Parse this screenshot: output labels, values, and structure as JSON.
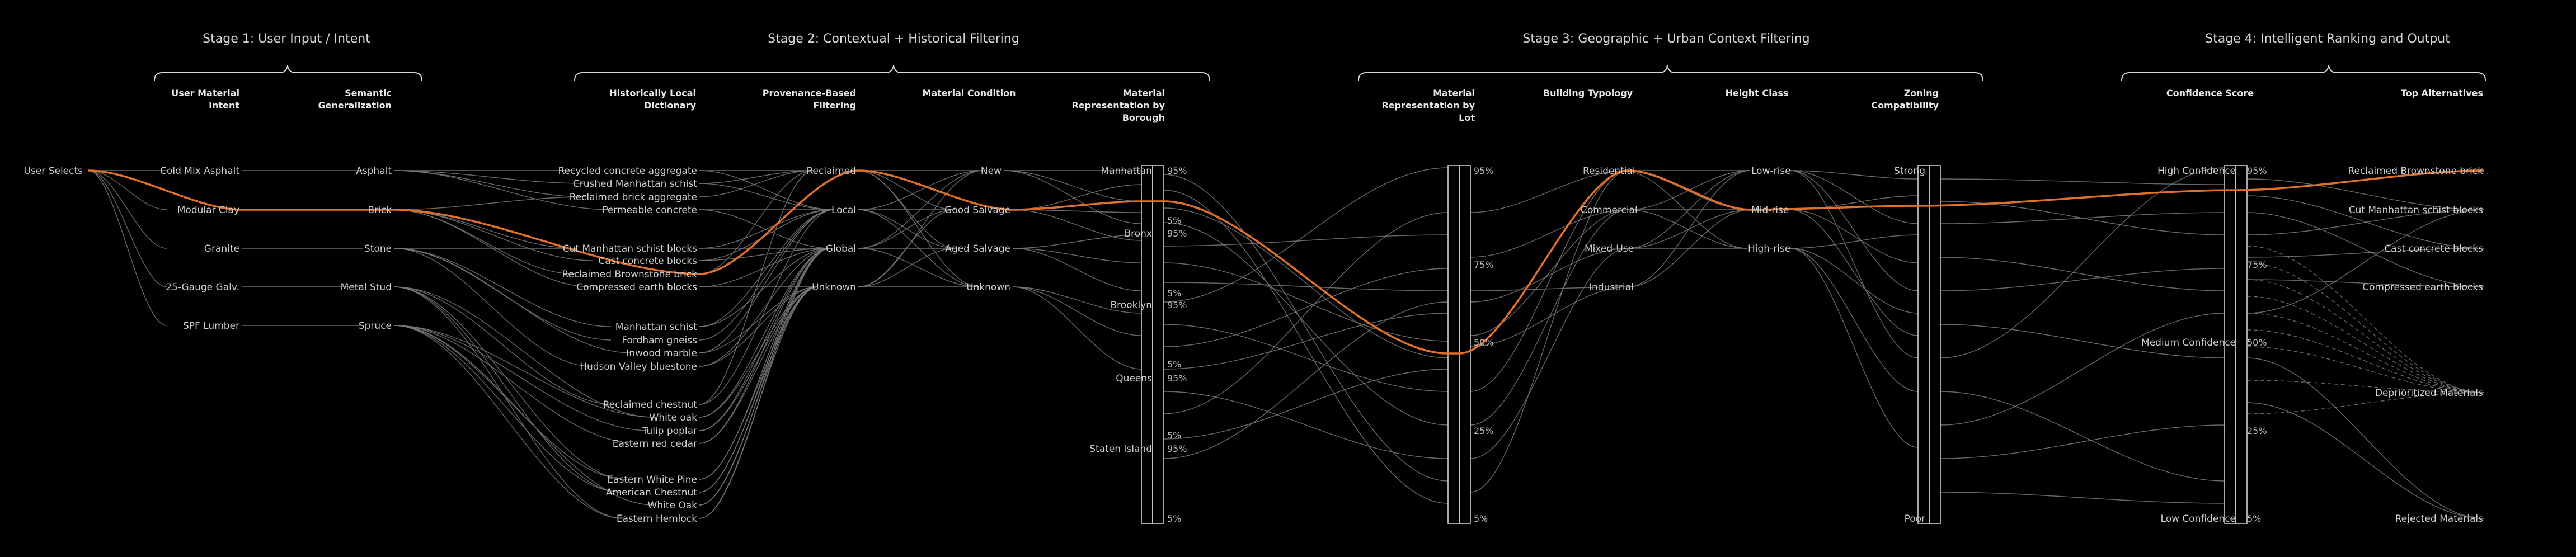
{
  "stages": [
    {
      "id": "s1",
      "title": "Stage 1: User Input / Intent"
    },
    {
      "id": "s2",
      "title": "Stage 2: Contextual + Historical Filtering"
    },
    {
      "id": "s3",
      "title": "Stage 3: Geographic + Urban Context Filtering"
    },
    {
      "id": "s4",
      "title": "Stage 4: Intelligent Ranking and Output"
    }
  ],
  "columns": [
    {
      "id": "c0",
      "header": ""
    },
    {
      "id": "c1",
      "header": "User Material\nIntent"
    },
    {
      "id": "c2",
      "header": "Semantic\nGeneralization"
    },
    {
      "id": "c3",
      "header": "Historically Local\nDictionary"
    },
    {
      "id": "c4",
      "header": "Provenance-Based\nFiltering"
    },
    {
      "id": "c5",
      "header": "Material Condition"
    },
    {
      "id": "c6",
      "header": "Material\nRepresentation by\nBorough"
    },
    {
      "id": "c7",
      "header": "Material\nRepresentation by\nLot"
    },
    {
      "id": "c8",
      "header": "Building Typology"
    },
    {
      "id": "c9",
      "header": "Height Class"
    },
    {
      "id": "c10",
      "header": "Zoning\nCompatibility"
    },
    {
      "id": "c11",
      "header": "Confidence Score"
    },
    {
      "id": "c12",
      "header": "Top Alternatives"
    }
  ],
  "nodes": [
    {
      "id": "user",
      "label": "User Selects"
    },
    {
      "id": "cma",
      "label": "Cold Mix Asphalt"
    },
    {
      "id": "mc",
      "label": "Modular Clay"
    },
    {
      "id": "gr",
      "label": "Granite"
    },
    {
      "id": "gg",
      "label": "25-Gauge Galv."
    },
    {
      "id": "spf",
      "label": "SPF Lumber"
    },
    {
      "id": "asph",
      "label": "Asphalt"
    },
    {
      "id": "brick",
      "label": "Brick"
    },
    {
      "id": "stone",
      "label": "Stone"
    },
    {
      "id": "ms",
      "label": "Metal Stud"
    },
    {
      "id": "spruce",
      "label": "Spruce"
    },
    {
      "id": "d1",
      "label": "Recycled concrete aggregate"
    },
    {
      "id": "d2",
      "label": "Crushed Manhattan schist"
    },
    {
      "id": "d3",
      "label": "Reclaimed brick aggregate"
    },
    {
      "id": "d4",
      "label": "Permeable concrete"
    },
    {
      "id": "d5",
      "label": "Cut Manhattan schist blocks"
    },
    {
      "id": "d6",
      "label": "Cast concrete blocks"
    },
    {
      "id": "d7",
      "label": "Reclaimed Brownstone brick"
    },
    {
      "id": "d8",
      "label": "Compressed earth blocks"
    },
    {
      "id": "d9",
      "label": "Manhattan schist"
    },
    {
      "id": "d10",
      "label": "Fordham gneiss"
    },
    {
      "id": "d11",
      "label": "Inwood marble"
    },
    {
      "id": "d12",
      "label": "Hudson Valley bluestone"
    },
    {
      "id": "d13",
      "label": "Reclaimed chestnut"
    },
    {
      "id": "d14",
      "label": "White oak"
    },
    {
      "id": "d15",
      "label": "Tulip poplar"
    },
    {
      "id": "d16",
      "label": "Eastern red cedar"
    },
    {
      "id": "d17",
      "label": "Eastern White Pine"
    },
    {
      "id": "d18",
      "label": "American Chestnut"
    },
    {
      "id": "d19",
      "label": "White Oak"
    },
    {
      "id": "d20",
      "label": "Eastern Hemlock"
    },
    {
      "id": "prec",
      "label": "Reclaimed"
    },
    {
      "id": "ploc",
      "label": "Local"
    },
    {
      "id": "pglo",
      "label": "Global"
    },
    {
      "id": "punk",
      "label": "Unknown"
    },
    {
      "id": "cnew",
      "label": "New"
    },
    {
      "id": "cgood",
      "label": "Good Salvage"
    },
    {
      "id": "caged",
      "label": "Aged Salvage"
    },
    {
      "id": "cunk",
      "label": "Unknown"
    },
    {
      "id": "bman",
      "label": "Manhattan"
    },
    {
      "id": "bbx",
      "label": "Bronx"
    },
    {
      "id": "bbk",
      "label": "Brooklyn"
    },
    {
      "id": "bqn",
      "label": "Queens"
    },
    {
      "id": "bsi",
      "label": "Staten Island"
    },
    {
      "id": "tres",
      "label": "Residential"
    },
    {
      "id": "tcom",
      "label": "Commercial"
    },
    {
      "id": "tmix",
      "label": "Mixed-Use"
    },
    {
      "id": "tind",
      "label": "Industrial"
    },
    {
      "id": "hlow",
      "label": "Low-rise"
    },
    {
      "id": "hmid",
      "label": "Mid-rise"
    },
    {
      "id": "hhigh",
      "label": "High-rise"
    },
    {
      "id": "zstrong",
      "label": "Strong"
    },
    {
      "id": "zpoor",
      "label": "Poor"
    },
    {
      "id": "fhigh",
      "label": "High Confidence"
    },
    {
      "id": "fmed",
      "label": "Medium Confidence"
    },
    {
      "id": "flow",
      "label": "Low Confidence"
    },
    {
      "id": "a1",
      "label": "Reclaimed Brownstone brick"
    },
    {
      "id": "a2",
      "label": "Cut Manhattan schist blocks"
    },
    {
      "id": "a3",
      "label": "Cast concrete blocks"
    },
    {
      "id": "a4",
      "label": "Compressed earth blocks"
    },
    {
      "id": "a5",
      "label": "Deprioritized Materials"
    },
    {
      "id": "a6",
      "label": "Rejected Materials"
    }
  ],
  "axis_labels": {
    "borough_a": [
      "95%",
      "5%",
      "95%",
      "5%",
      "95%",
      "5%",
      "95%",
      "5%",
      "95%",
      "5%"
    ],
    "lot": [
      "95%",
      "75%",
      "50%",
      "25%",
      "5%"
    ],
    "confidence": [
      "95%",
      "75%",
      "50%",
      "25%",
      "5%"
    ]
  },
  "highlight_path": [
    "user",
    "mc",
    "brick",
    "d7",
    "prec",
    "cgood",
    "bman",
    "lot50",
    "tres",
    "hmid",
    "zstrong",
    "a1"
  ],
  "colors": {
    "highlight": "#e0702a",
    "link": "#7a7a7a",
    "text": "#cfcfcf",
    "background": "#000000"
  }
}
